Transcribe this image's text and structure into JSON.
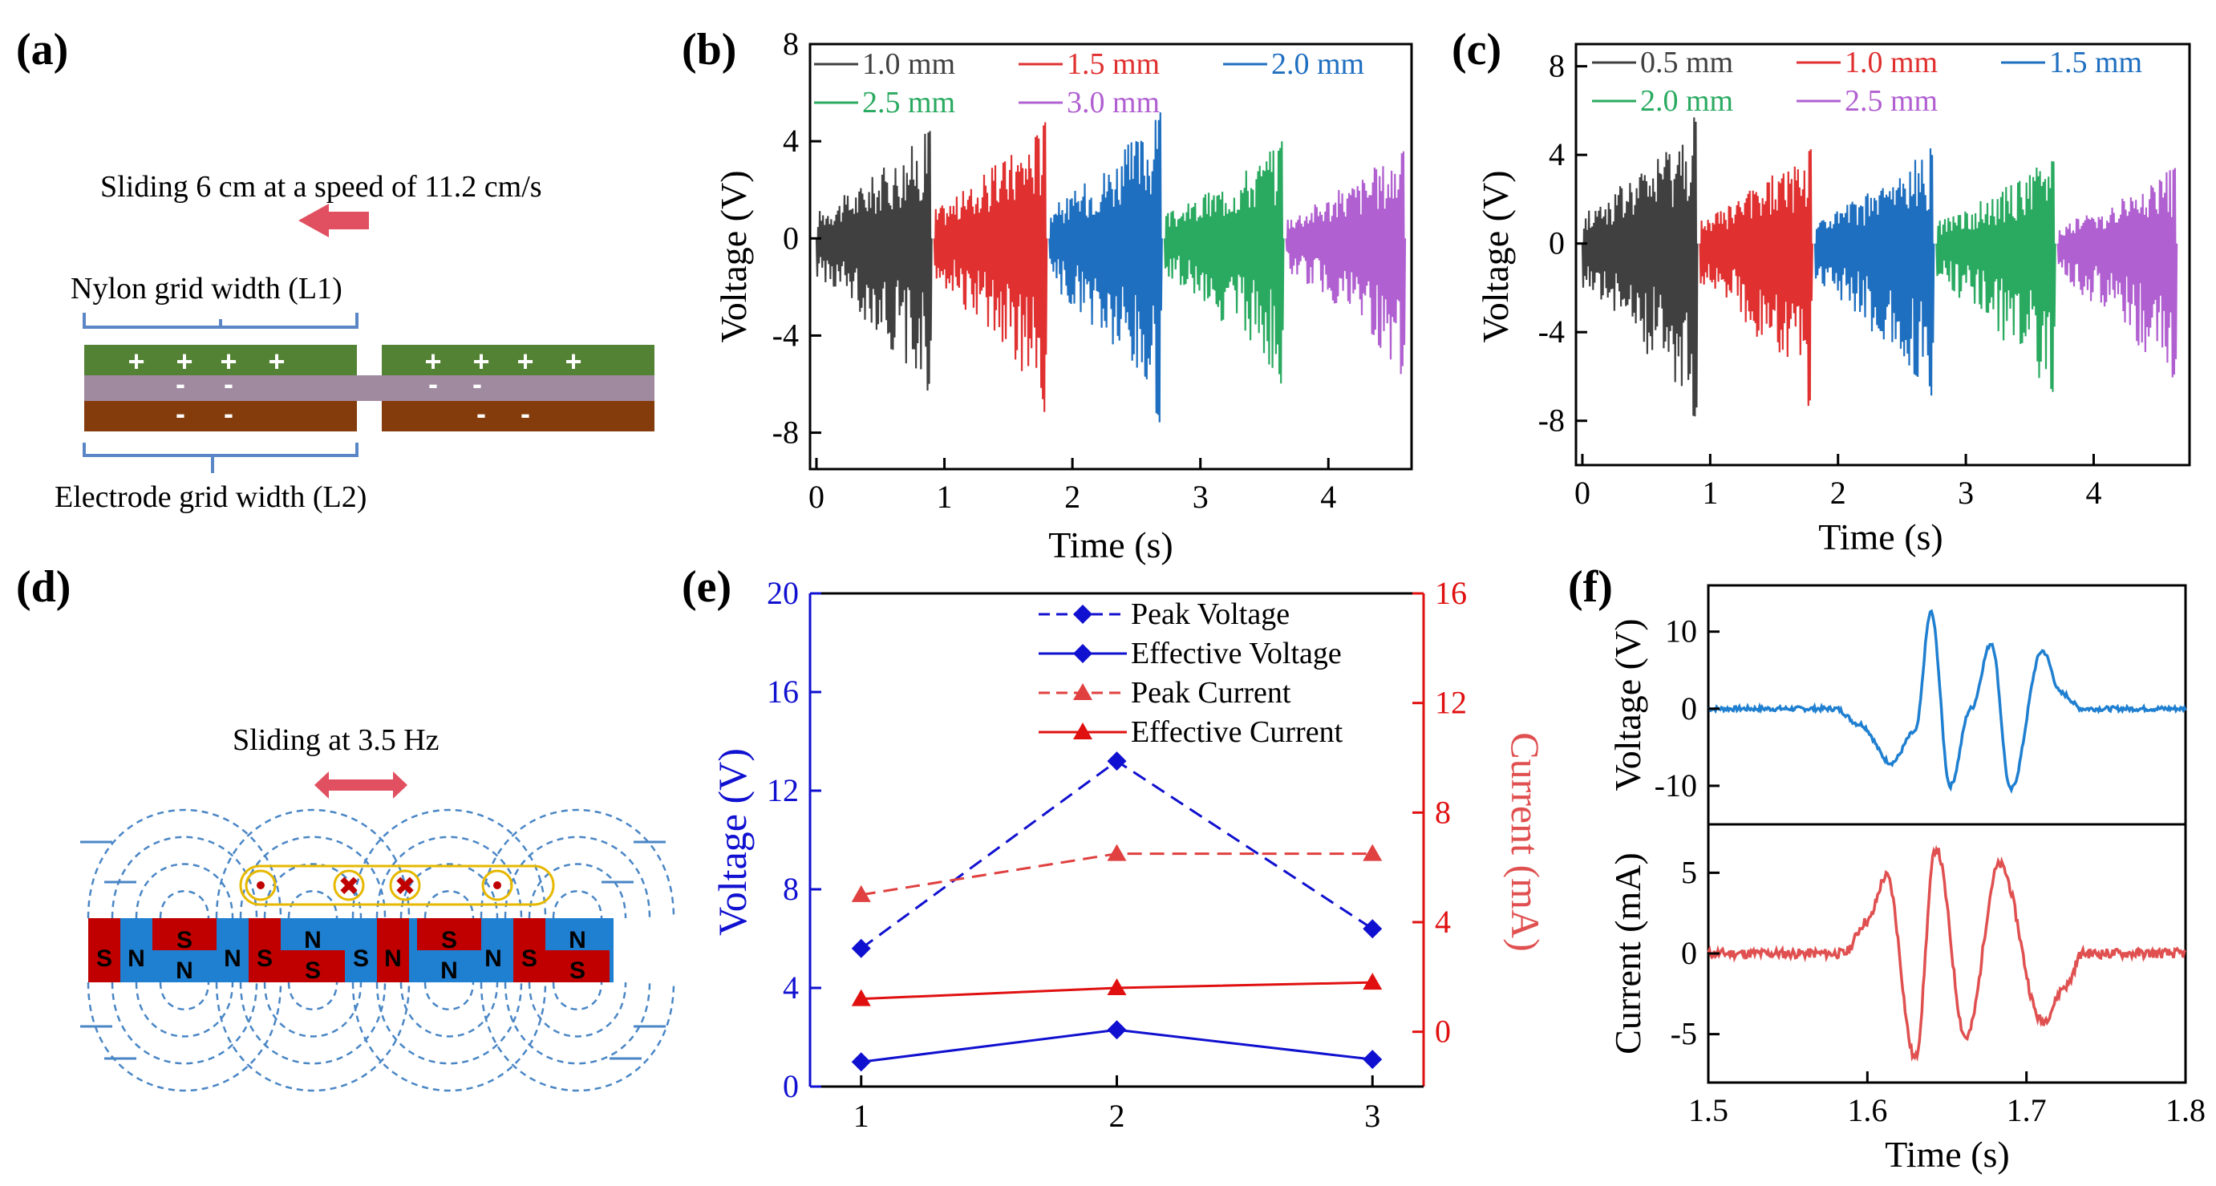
{
  "panel_labels": [
    "(a)",
    "(b)",
    "(c)",
    "(d)",
    "(e)",
    "(f)"
  ],
  "diagram_a": {
    "sliding_text": "Sliding 6 cm at a speed of 11.2 cm/s",
    "nylon_label": "Nylon grid width (L1)",
    "electrode_label": "Electrode grid width (L2)",
    "colors": {
      "nylon": "#548235",
      "dielectric": "#a08aa0",
      "electrode": "#843c0c",
      "arrow": "#e05060"
    }
  },
  "diagram_d": {
    "sliding_text": "Sliding at 3.5 Hz",
    "magnets": [
      "S",
      "N",
      "S",
      "N",
      "N",
      "S",
      "N",
      "S",
      "S",
      "N",
      "S",
      "N",
      "N",
      "S",
      "N",
      "S"
    ],
    "colors": {
      "red": "#c00000",
      "blue": "#1f7fd0",
      "field": "#4a86c5",
      "coil": "#e6b800"
    }
  },
  "chart_data": [
    {
      "panel": "(b)",
      "type": "line",
      "xlabel": "Time (s)",
      "ylabel": "Voltage (V)",
      "xlim": [
        -0.05,
        4.65
      ],
      "ylim": [
        -9.5,
        8
      ],
      "xticks": [
        0,
        1,
        2,
        3,
        4
      ],
      "yticks": [
        -8,
        -4,
        0,
        4,
        8
      ],
      "series": [
        {
          "name": "1.0 mm",
          "color": "#404040",
          "t": [
            0.0,
            0.9
          ],
          "peak_pos": 4.6,
          "peak_neg": -6.6
        },
        {
          "name": "1.5 mm",
          "color": "#e03030",
          "t": [
            0.92,
            1.8
          ],
          "peak_pos": 5.0,
          "peak_neg": -7.2
        },
        {
          "name": "2.0 mm",
          "color": "#1f6fc0",
          "t": [
            1.82,
            2.7
          ],
          "peak_pos": 5.3,
          "peak_neg": -7.9
        },
        {
          "name": "2.5 mm",
          "color": "#2aaa60",
          "t": [
            2.72,
            3.65
          ],
          "peak_pos": 4.1,
          "peak_neg": -6.1
        },
        {
          "name": "3.0 mm",
          "color": "#b060d0",
          "t": [
            3.67,
            4.6
          ],
          "peak_pos": 3.8,
          "peak_neg": -5.6
        }
      ]
    },
    {
      "panel": "(c)",
      "type": "line",
      "xlabel": "Time (s)",
      "ylabel": "Voltage (V)",
      "xlim": [
        -0.05,
        4.75
      ],
      "ylim": [
        -10,
        9
      ],
      "xticks": [
        0,
        1,
        2,
        3,
        4
      ],
      "yticks": [
        -8,
        -4,
        0,
        4,
        8
      ],
      "series": [
        {
          "name": "0.5 mm",
          "color": "#404040",
          "t": [
            0.0,
            0.9
          ],
          "peak_pos": 5.8,
          "peak_neg": -8.0
        },
        {
          "name": "1.0 mm",
          "color": "#e03030",
          "t": [
            0.92,
            1.8
          ],
          "peak_pos": 4.5,
          "peak_neg": -7.4
        },
        {
          "name": "1.5 mm",
          "color": "#1f6fc0",
          "t": [
            1.82,
            2.75
          ],
          "peak_pos": 4.4,
          "peak_neg": -7.1
        },
        {
          "name": "2.0 mm",
          "color": "#2aaa60",
          "t": [
            2.77,
            3.7
          ],
          "peak_pos": 4.0,
          "peak_neg": -7.0
        },
        {
          "name": "2.5 mm",
          "color": "#b060d0",
          "t": [
            3.72,
            4.65
          ],
          "peak_pos": 3.5,
          "peak_neg": -6.4
        }
      ]
    },
    {
      "panel": "(e)",
      "type": "line",
      "categories": [
        1,
        2,
        3
      ],
      "xlim": [
        0.8,
        3.2
      ],
      "ylabel_left": "Voltage (V)",
      "ylabel_right": "Current (mA)",
      "ylim_left": [
        0,
        20
      ],
      "ylim_right": [
        -2,
        16
      ],
      "yticks_left": [
        0,
        4,
        8,
        12,
        16,
        20
      ],
      "yticks_right": [
        0,
        4,
        8,
        12,
        16
      ],
      "series": [
        {
          "name": "Peak Voltage",
          "axis": "left",
          "color": "#1010d0",
          "dash": true,
          "marker": "diamond",
          "values": [
            5.6,
            13.2,
            6.4
          ]
        },
        {
          "name": "Effective Voltage",
          "axis": "left",
          "color": "#1010d0",
          "dash": false,
          "marker": "diamond",
          "values": [
            1.0,
            2.3,
            1.1
          ]
        },
        {
          "name": "Peak Current",
          "axis": "right",
          "color": "#e04040",
          "dash": true,
          "marker": "triangle",
          "values": [
            5.0,
            6.5,
            6.5
          ]
        },
        {
          "name": "Effective Current",
          "axis": "right",
          "color": "#e01010",
          "dash": false,
          "marker": "triangle",
          "values": [
            1.2,
            1.6,
            1.8
          ]
        }
      ]
    },
    {
      "panel": "(f)",
      "type": "line",
      "xlabel": "Time (s)",
      "xlim": [
        1.5,
        1.8
      ],
      "xticks": [
        1.5,
        1.6,
        1.7,
        1.8
      ],
      "top": {
        "ylabel": "Voltage (V)",
        "ylim": [
          -15,
          16
        ],
        "yticks": [
          -10,
          0,
          10
        ],
        "color": "#1f7fd0",
        "points": [
          [
            1.5,
            0
          ],
          [
            1.58,
            0
          ],
          [
            1.595,
            -2
          ],
          [
            1.615,
            -7
          ],
          [
            1.63,
            -3
          ],
          [
            1.64,
            12.5
          ],
          [
            1.652,
            -10
          ],
          [
            1.665,
            0
          ],
          [
            1.678,
            8.5
          ],
          [
            1.69,
            -10.5
          ],
          [
            1.71,
            7.5
          ],
          [
            1.722,
            2
          ],
          [
            1.735,
            0
          ],
          [
            1.8,
            0
          ]
        ]
      },
      "bottom": {
        "ylabel": "Current (mA)",
        "ylim": [
          -8,
          8
        ],
        "yticks": [
          -5,
          0,
          5
        ],
        "color": "#e05050",
        "points": [
          [
            1.5,
            0
          ],
          [
            1.585,
            0
          ],
          [
            1.6,
            2
          ],
          [
            1.612,
            4.8
          ],
          [
            1.63,
            -6.5
          ],
          [
            1.643,
            6.5
          ],
          [
            1.662,
            -5.2
          ],
          [
            1.683,
            5.5
          ],
          [
            1.71,
            -4.2
          ],
          [
            1.725,
            -2
          ],
          [
            1.735,
            0
          ],
          [
            1.8,
            0
          ]
        ]
      }
    }
  ]
}
